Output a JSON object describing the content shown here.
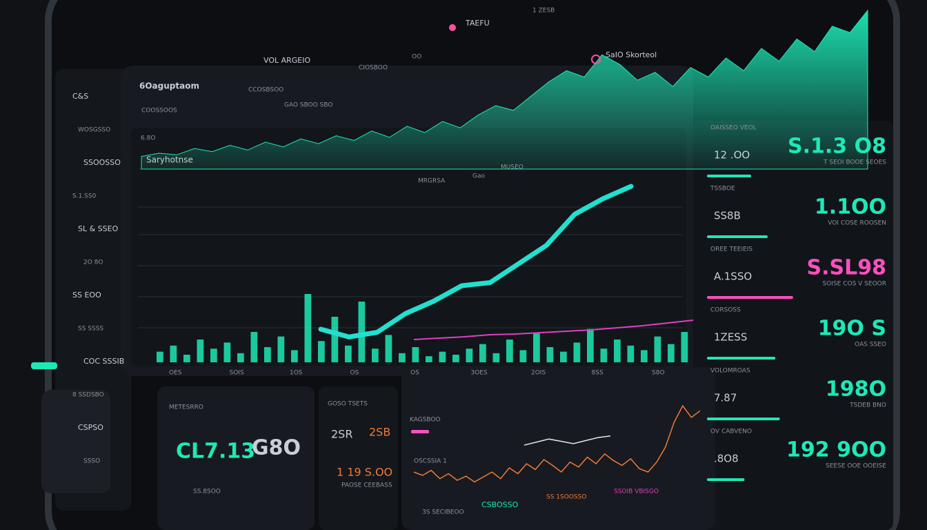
{
  "top_bar": {
    "brand": "TAEFU",
    "status": "1 ZESB"
  },
  "header": {
    "title": "6Oaguptaom",
    "subtitle": "COOSSOOS",
    "menu": [
      "VOL ARGEIO",
      "CCOSBSOO",
      "OO",
      "CIOSBOO",
      "GAO SBOO SBO"
    ],
    "badge": "SaIO Skorteol"
  },
  "sidebar": {
    "items": [
      "C&S",
      "WOSGSSO",
      "SSOOSSO",
      "S.1.SS0",
      "SL & SSEO",
      "2O 8O",
      "SS EOO",
      "SS SSSS",
      "COC SSSIB",
      "8 SSDSBO",
      "CSPSO",
      "SSSO"
    ]
  },
  "main_chart": {
    "label": "Saryhotnse",
    "corner": "6.8O",
    "legend": [
      "MRGRSA",
      "Gao",
      "MUSEO"
    ],
    "x_labels": [
      "OES",
      "SOIS",
      "1OS",
      "OS",
      "OS",
      "3OES",
      "2OIS",
      "8SS",
      "S8O"
    ],
    "price_area": {
      "color": "#1de9b6",
      "values": [
        8,
        10,
        9,
        13,
        11,
        15,
        12,
        17,
        14,
        19,
        16,
        21,
        18,
        24,
        20,
        27,
        23,
        30,
        26,
        34,
        40,
        37,
        46,
        55,
        62,
        58,
        72,
        66,
        56,
        61,
        52,
        64,
        58,
        70,
        62,
        76,
        68,
        82,
        74,
        90,
        86,
        100
      ]
    },
    "trend": {
      "color": "#22e0d0",
      "values": [
        8,
        3,
        6,
        18,
        26,
        36,
        38,
        50,
        62,
        82,
        92,
        100
      ]
    },
    "signal": {
      "color": "#e040c0",
      "values": [
        8,
        10,
        12,
        15,
        16,
        18,
        20,
        22,
        25,
        28,
        32,
        36
      ]
    },
    "volume": {
      "color": "#1de9b6",
      "values": [
        14,
        22,
        10,
        30,
        18,
        26,
        12,
        40,
        20,
        34,
        16,
        90,
        28,
        60,
        22,
        80,
        18,
        36,
        12,
        20,
        8,
        14,
        10,
        18,
        24,
        12,
        30,
        16,
        38,
        20,
        14,
        26,
        44,
        18,
        30,
        22,
        16,
        34,
        24,
        40
      ]
    }
  },
  "stats": [
    {
      "label": "OAISSEO VEOL",
      "small": "12 .OO",
      "value": "S.1.3 O8",
      "sub": "T SEOI BOOE SEOES",
      "color": "#1de9b6",
      "progress": 40
    },
    {
      "label": "TSSBOE",
      "small": "SS8B",
      "value": "1.1OO",
      "sub": "VOI COSE ROOSEN",
      "color": "#1de9b6",
      "progress": 55
    },
    {
      "label": "OREE TEEIEIS",
      "small": "A.1SSO",
      "value": "S.SL98",
      "sub": "SOISE COS V SEOOR",
      "color": "#ff4fc0",
      "progress": 78
    },
    {
      "label": "CORSOSS",
      "small": "1ZESS",
      "value": "19O S",
      "sub": "OAS SSEO",
      "color": "#1de9b6",
      "progress": 62
    },
    {
      "label": "VOLOMROAS",
      "small": "7.87",
      "value": "198O",
      "sub": "TSDEB BNO",
      "color": "#1de9b6",
      "progress": 66
    },
    {
      "label": "OV CABVENO",
      "small": ".8O8",
      "value": "192 9OO",
      "sub": "SEESE OOE OOEISE",
      "color": "#1de9b6",
      "progress": 34
    }
  ],
  "panels": [
    {
      "title": "METESRRO",
      "texts": [
        "CL7.13",
        "G8O",
        "SS.8SOO"
      ]
    },
    {
      "title": "GOSO TSETS",
      "texts": [
        "2SR",
        "2SB",
        "1 19 S.OO",
        "PAOSE CEEBASS"
      ]
    },
    {
      "title": "KAGSBOO",
      "texts": [
        "OSCSSIA 1",
        "3S SECIBEOO",
        "CSBOSSO",
        "SS 1SOOSSO",
        "SSOIB VBISGO"
      ]
    }
  ],
  "bottom_chart": {
    "color": "#f07a3a",
    "values": [
      30,
      26,
      32,
      22,
      28,
      20,
      25,
      18,
      24,
      30,
      22,
      35,
      28,
      40,
      33,
      45,
      38,
      30,
      42,
      36,
      48,
      40,
      52,
      44,
      38,
      46,
      34,
      30,
      42,
      60,
      90,
      110,
      96,
      104
    ],
    "overlay": {
      "color": "#e8e8e8",
      "values": [
        50,
        54,
        58,
        55,
        52,
        56,
        60,
        62
      ]
    }
  }
}
